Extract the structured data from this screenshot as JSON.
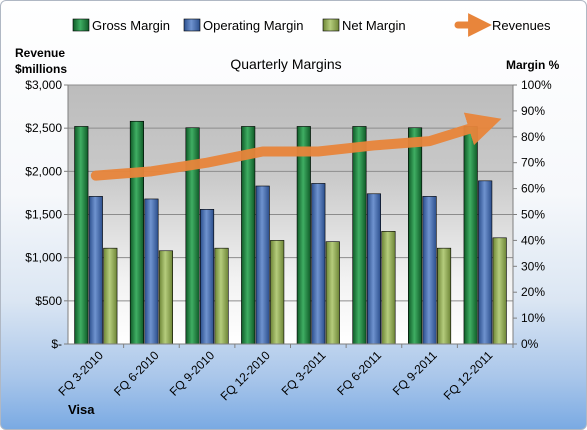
{
  "chart_data": {
    "type": "bar",
    "title": "Quarterly Margins",
    "categories": [
      "FQ 3-2010",
      "FQ 6-2010",
      "FQ 9-2010",
      "FQ 12-2010",
      "FQ 3-2011",
      "FQ 6-2011",
      "FQ 9-2011",
      "FQ 12-2011"
    ],
    "series": [
      {
        "name": "Gross Margin",
        "axis": "right",
        "color": "#1e8a43",
        "values": [
          84,
          86,
          83.5,
          84,
          84,
          84,
          83.5,
          84
        ]
      },
      {
        "name": "Operating Margin",
        "axis": "right",
        "color": "#4670b4",
        "values": [
          57,
          56,
          52,
          61,
          62,
          58,
          57,
          63
        ]
      },
      {
        "name": "Net Margin",
        "axis": "right",
        "color": "#93ac57",
        "values": [
          37,
          36,
          37,
          40,
          39.5,
          43.5,
          37,
          41
        ]
      },
      {
        "name": "Revenues",
        "type": "line",
        "axis": "left",
        "color": "#e8853b",
        "values": [
          1950,
          2000,
          2100,
          2230,
          2230,
          2300,
          2350,
          2550
        ]
      }
    ],
    "left_axis": {
      "title_line1": "Revenue",
      "title_line2": "$millions",
      "ylim": [
        0,
        3000
      ],
      "ticks": [
        0,
        500,
        1000,
        1500,
        2000,
        2500,
        3000
      ],
      "tick_labels": [
        "$-",
        "$500",
        "$1,000",
        "$1,500",
        "$2,000",
        "$2,500",
        "$3,000"
      ]
    },
    "right_axis": {
      "title": "Margin %",
      "ylim": [
        0,
        100
      ],
      "ticks": [
        0,
        10,
        20,
        30,
        40,
        50,
        60,
        70,
        80,
        90,
        100
      ],
      "tick_labels": [
        "0%",
        "10%",
        "20%",
        "30%",
        "40%",
        "50%",
        "60%",
        "70%",
        "80%",
        "90%",
        "100%"
      ]
    },
    "grid": true,
    "legend_position": "top"
  },
  "footer_label": "Visa"
}
